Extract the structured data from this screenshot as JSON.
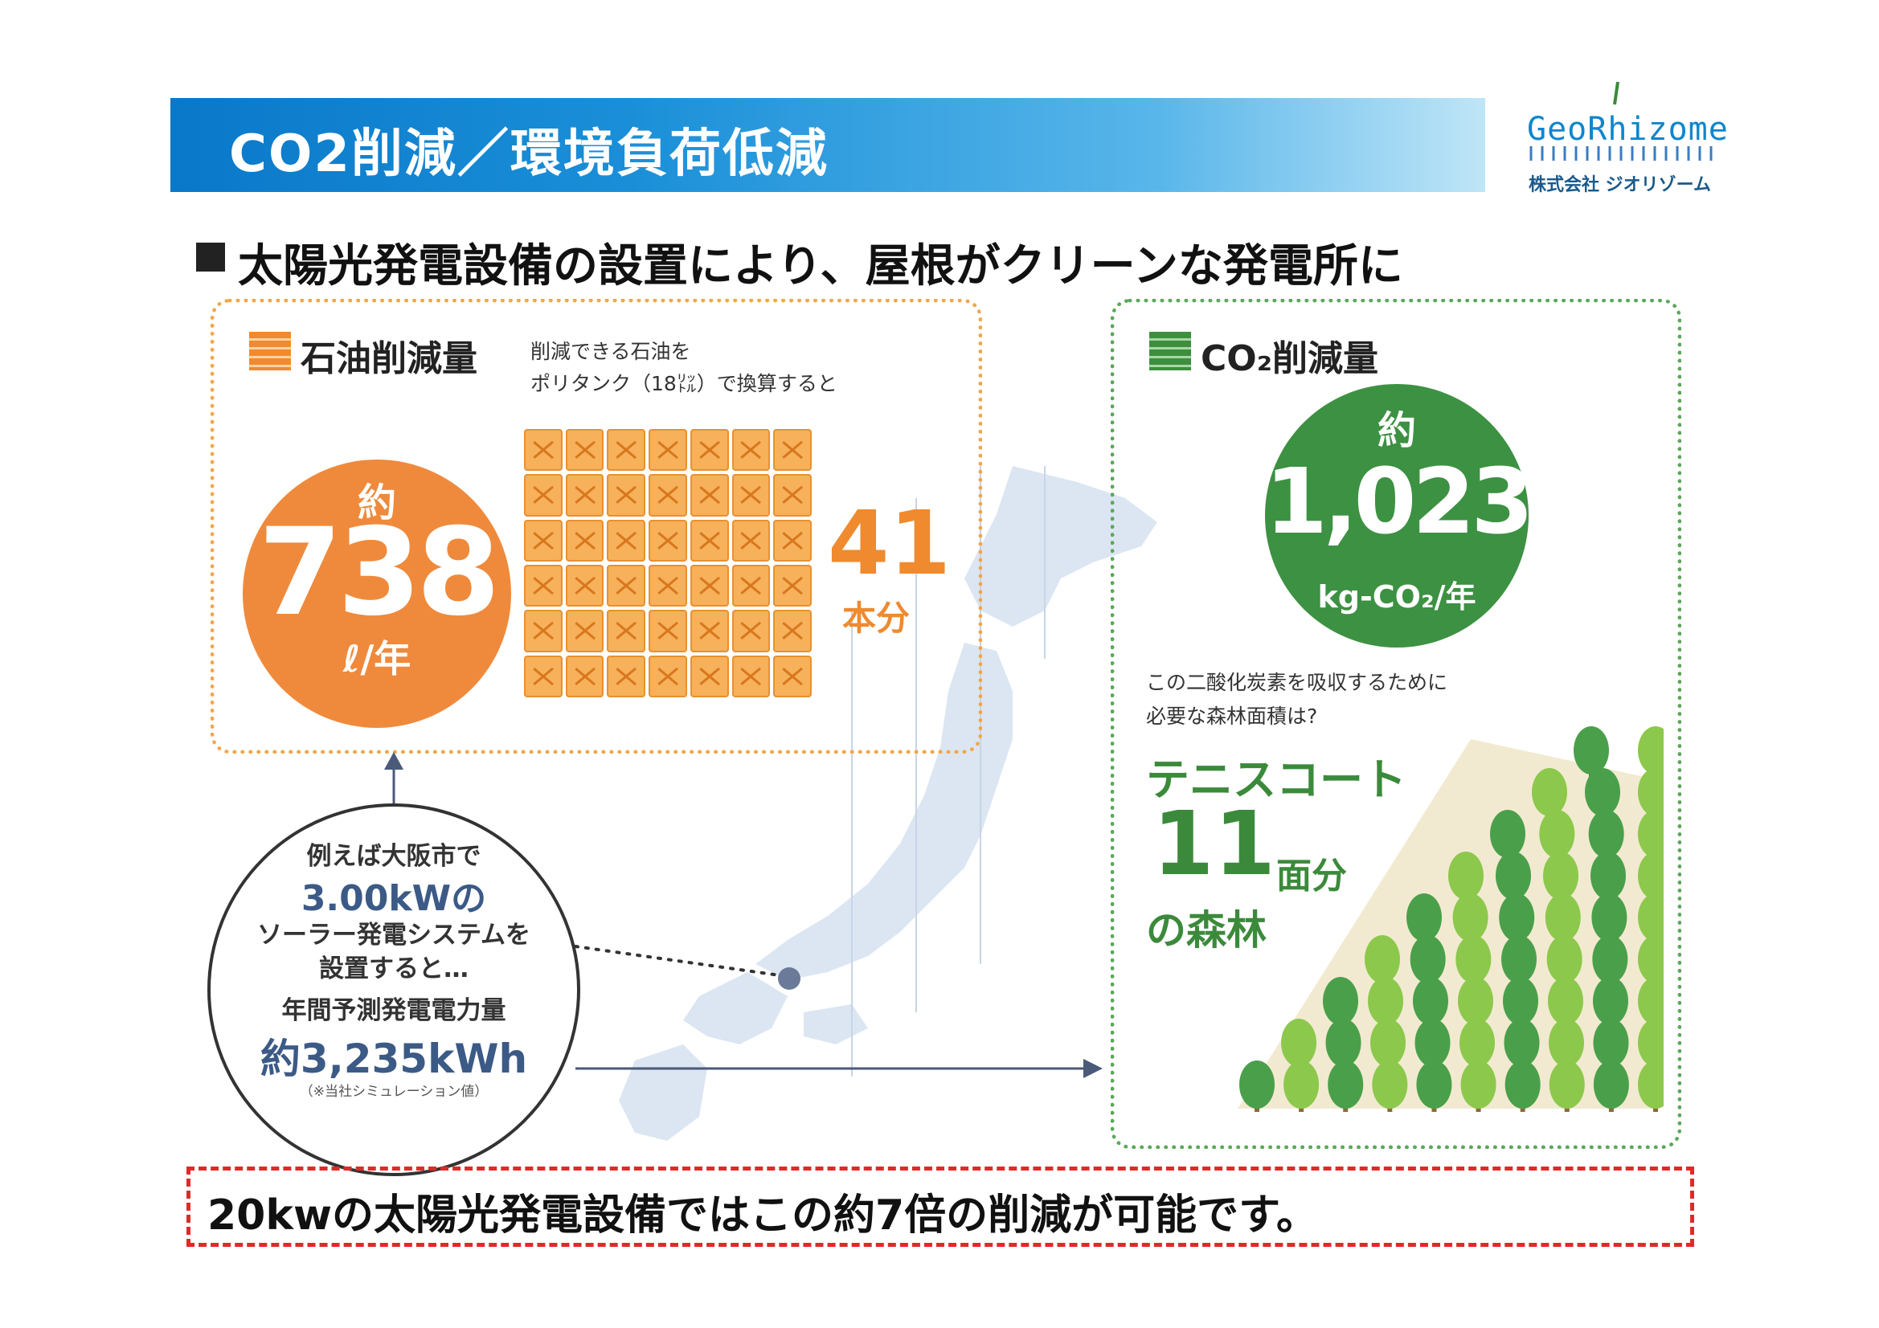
{
  "banner": {
    "title": "CO2削減／環境負荷低減"
  },
  "logo": {
    "name": "GeoRhizome",
    "company": "株式会社 ジオリゾーム"
  },
  "heading": "太陽光発電設備の設置により、屋根がクリーンな発電所に",
  "oil": {
    "label": "石油削減量",
    "note_line1": "削減できる石油を",
    "note_line2": "ポリタンク（18㍑）で換算すると",
    "approx": "約",
    "value": "738",
    "unit": "ℓ/年",
    "tank_count": "41",
    "tank_count_unit": "本分"
  },
  "co2": {
    "label": "CO₂削減量",
    "approx": "約",
    "value": "1,023",
    "unit": "kg-CO₂/年",
    "note_line1": "この二酸化炭素を吸収するために",
    "note_line2": "必要な森林面積は?",
    "tennis": "テニスコート",
    "court_count": "11",
    "court_unit": "面分",
    "forest_suffix": "の森林"
  },
  "osaka": {
    "line1": "例えば大阪市で",
    "line2": "3.00kWの",
    "line3": "ソーラー発電システムを",
    "line4": "設置すると…",
    "line5": "年間予測発電電力量",
    "line6": "約3,235kWh",
    "line7": "（※当社シミュレーション値）"
  },
  "bottom": {
    "text": "20kwの太陽光発電設備ではこの約7倍の削減が可能です。"
  },
  "colors": {
    "banner": "#0a78c9",
    "oil": "#ef8a3c",
    "co2": "#3d9142",
    "alert_border": "#e02a2a",
    "map": "#dce6f2"
  }
}
